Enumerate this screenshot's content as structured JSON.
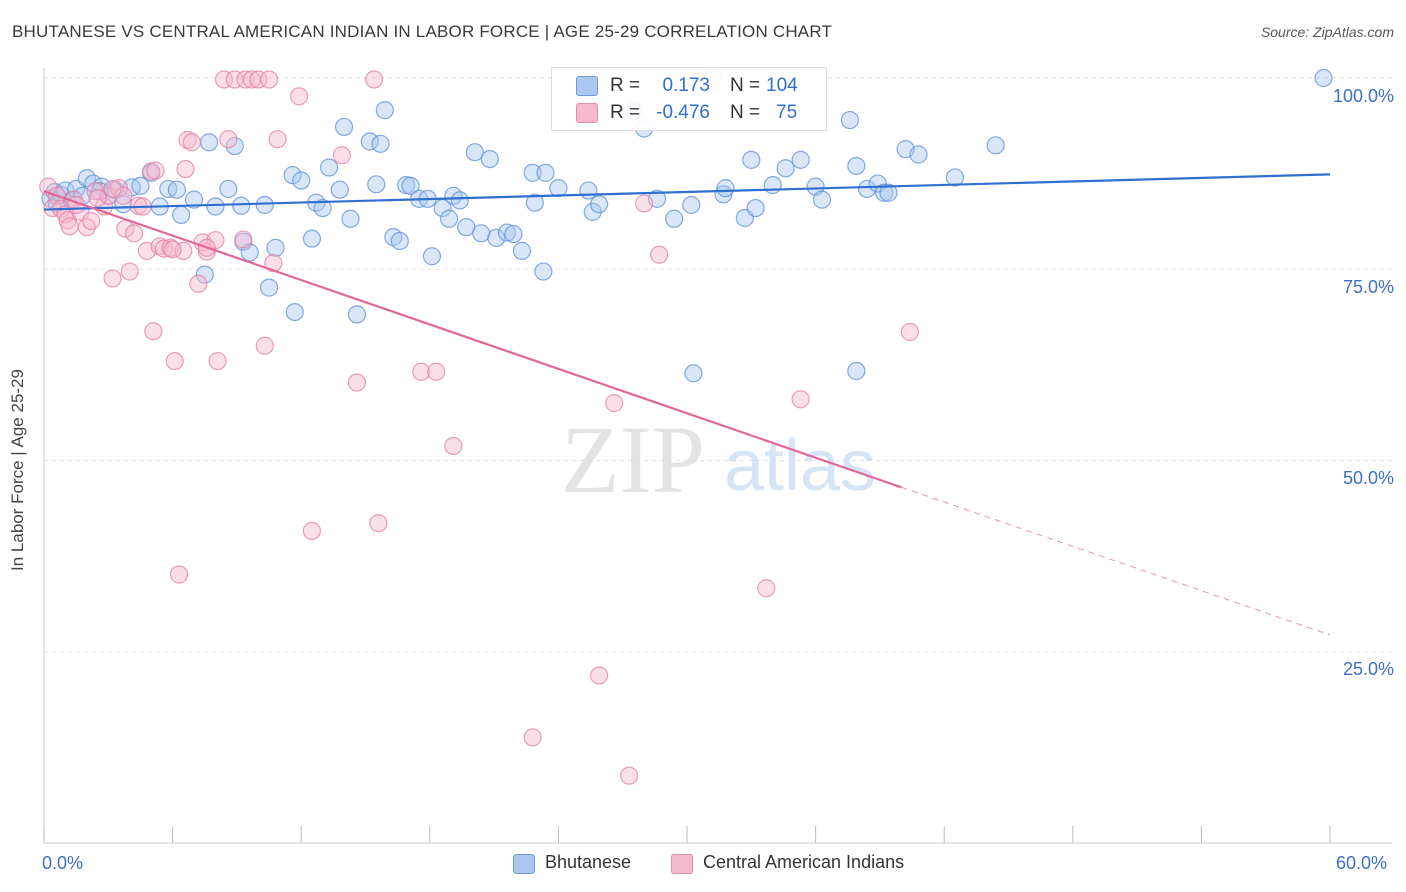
{
  "title": "BHUTANESE VS CENTRAL AMERICAN INDIAN IN LABOR FORCE | AGE 25-29 CORRELATION CHART",
  "source": "Source: ZipAtlas.com",
  "watermark": {
    "zip": "ZIP",
    "atlas": "atlas"
  },
  "colors": {
    "blue": "#2f6fcf",
    "blue_fill": "#a9c7ef",
    "pink": "#e0679a",
    "pink_fill": "#f6b8cd",
    "tick_text": "#3d6fc4",
    "grid": "#e3e3e3"
  },
  "legend": {
    "rows": [
      {
        "r_label": "R =",
        "r_value": "0.173",
        "n_label": "N =",
        "n_value": "104"
      },
      {
        "r_label": "R =",
        "r_value": "-0.476",
        "n_label": "N =",
        "n_value": "75"
      }
    ]
  },
  "chart_data": {
    "type": "scatter",
    "title": "BHUTANESE VS CENTRAL AMERICAN INDIAN IN LABOR FORCE | AGE 25-29 CORRELATION CHART",
    "xlabel": "",
    "ylabel": "In Labor Force | Age 25-29",
    "xlim": [
      0,
      60
    ],
    "ylim": [
      0,
      100
    ],
    "x_tick_labels": [
      "0.0%",
      "60.0%"
    ],
    "y_ticks": [
      25,
      50,
      75,
      100
    ],
    "y_tick_labels": [
      "25.0%",
      "50.0%",
      "75.0%",
      "100.0%"
    ],
    "grid": true,
    "legend_position": "top-center",
    "series": [
      {
        "name": "Bhutanese",
        "color": "#2f6fcf",
        "r": 0.173,
        "n": 104,
        "trend": {
          "x": [
            0,
            60
          ],
          "y": [
            82.8,
            87.4
          ],
          "style": "solid"
        },
        "points": [
          [
            0.3,
            84.2
          ],
          [
            0.5,
            85.1
          ],
          [
            0.6,
            83.6
          ],
          [
            0.8,
            84.7
          ],
          [
            1.0,
            85.3
          ],
          [
            1.3,
            84.0
          ],
          [
            1.5,
            85.5
          ],
          [
            2.0,
            86.9
          ],
          [
            2.3,
            86.2
          ],
          [
            2.7,
            85.8
          ],
          [
            3.0,
            84.6
          ],
          [
            3.3,
            85.4
          ],
          [
            3.7,
            83.5
          ],
          [
            4.1,
            85.7
          ],
          [
            4.5,
            85.9
          ],
          [
            5.0,
            87.6
          ],
          [
            5.4,
            83.2
          ],
          [
            5.8,
            85.5
          ],
          [
            6.4,
            82.1
          ],
          [
            7.0,
            84.1
          ],
          [
            7.5,
            74.3
          ],
          [
            7.7,
            91.6
          ],
          [
            8.0,
            83.2
          ],
          [
            8.6,
            85.5
          ],
          [
            8.9,
            91.1
          ],
          [
            9.2,
            83.3
          ],
          [
            9.3,
            78.6
          ],
          [
            9.6,
            77.2
          ],
          [
            10.3,
            83.4
          ],
          [
            10.5,
            72.6
          ],
          [
            10.8,
            77.8
          ],
          [
            11.6,
            87.3
          ],
          [
            11.7,
            69.4
          ],
          [
            12.0,
            86.6
          ],
          [
            12.5,
            79.0
          ],
          [
            12.7,
            83.7
          ],
          [
            13.0,
            83.0
          ],
          [
            13.3,
            88.3
          ],
          [
            13.8,
            85.4
          ],
          [
            14.3,
            81.6
          ],
          [
            14.6,
            69.1
          ],
          [
            15.2,
            91.7
          ],
          [
            15.5,
            86.1
          ],
          [
            15.7,
            91.4
          ],
          [
            15.9,
            95.8
          ],
          [
            16.3,
            79.2
          ],
          [
            16.6,
            78.7
          ],
          [
            16.9,
            86.0
          ],
          [
            17.1,
            85.9
          ],
          [
            17.5,
            84.2
          ],
          [
            17.9,
            84.2
          ],
          [
            18.1,
            76.7
          ],
          [
            18.6,
            83.0
          ],
          [
            18.9,
            81.6
          ],
          [
            19.1,
            84.6
          ],
          [
            19.4,
            84.0
          ],
          [
            19.7,
            80.5
          ],
          [
            20.1,
            90.3
          ],
          [
            20.4,
            79.7
          ],
          [
            20.8,
            89.4
          ],
          [
            21.1,
            79.1
          ],
          [
            21.6,
            79.8
          ],
          [
            21.9,
            79.6
          ],
          [
            22.3,
            77.4
          ],
          [
            22.8,
            87.6
          ],
          [
            22.9,
            83.7
          ],
          [
            23.3,
            74.7
          ],
          [
            23.4,
            87.6
          ],
          [
            24.0,
            85.6
          ],
          [
            25.4,
            85.3
          ],
          [
            25.6,
            82.5
          ],
          [
            25.9,
            83.5
          ],
          [
            27.5,
            95.7
          ],
          [
            28.0,
            93.4
          ],
          [
            28.6,
            84.2
          ],
          [
            29.4,
            81.6
          ],
          [
            30.2,
            83.4
          ],
          [
            31.7,
            84.8
          ],
          [
            31.8,
            85.6
          ],
          [
            32.7,
            81.7
          ],
          [
            33.0,
            89.3
          ],
          [
            33.2,
            83.0
          ],
          [
            34.0,
            86.0
          ],
          [
            34.6,
            88.2
          ],
          [
            35.3,
            89.3
          ],
          [
            36.0,
            85.8
          ],
          [
            36.3,
            84.1
          ],
          [
            37.6,
            94.5
          ],
          [
            37.9,
            88.5
          ],
          [
            38.4,
            85.5
          ],
          [
            38.9,
            86.2
          ],
          [
            39.2,
            85.0
          ],
          [
            39.4,
            85.0
          ],
          [
            40.2,
            90.7
          ],
          [
            40.8,
            90.0
          ],
          [
            42.5,
            87.0
          ],
          [
            44.4,
            91.2
          ],
          [
            59.7,
            100.0
          ],
          [
            30.3,
            61.4
          ],
          [
            37.9,
            61.7
          ],
          [
            1.8,
            84.6
          ],
          [
            6.2,
            85.4
          ],
          [
            2.6,
            85.2
          ],
          [
            14.0,
            93.6
          ]
        ]
      },
      {
        "name": "Central American Indians",
        "color": "#e0679a",
        "r": -0.476,
        "n": 75,
        "trend": {
          "x": [
            0,
            40
          ],
          "y": [
            85.2,
            46.5
          ],
          "style": "solid",
          "extended": {
            "x": [
              40,
              60
            ],
            "y": [
              46.5,
              27.2
            ],
            "style": "dashed"
          }
        },
        "points": [
          [
            0.2,
            85.8
          ],
          [
            0.4,
            83.0
          ],
          [
            0.6,
            84.6
          ],
          [
            0.8,
            82.9
          ],
          [
            1.0,
            82.2
          ],
          [
            1.1,
            81.4
          ],
          [
            1.2,
            80.6
          ],
          [
            1.4,
            84.1
          ],
          [
            1.7,
            82.5
          ],
          [
            2.0,
            80.5
          ],
          [
            2.2,
            81.3
          ],
          [
            2.4,
            85.2
          ],
          [
            2.8,
            83.2
          ],
          [
            3.0,
            84.6
          ],
          [
            3.2,
            73.8
          ],
          [
            3.5,
            85.6
          ],
          [
            3.7,
            84.6
          ],
          [
            3.8,
            80.3
          ],
          [
            4.0,
            74.7
          ],
          [
            4.2,
            79.7
          ],
          [
            4.4,
            83.3
          ],
          [
            4.6,
            83.2
          ],
          [
            4.8,
            77.4
          ],
          [
            5.0,
            87.8
          ],
          [
            5.1,
            66.9
          ],
          [
            5.4,
            78.0
          ],
          [
            5.6,
            77.7
          ],
          [
            5.9,
            77.8
          ],
          [
            6.1,
            63.0
          ],
          [
            6.3,
            35.1
          ],
          [
            6.5,
            77.4
          ],
          [
            6.7,
            91.9
          ],
          [
            6.9,
            91.6
          ],
          [
            7.2,
            73.1
          ],
          [
            7.4,
            78.5
          ],
          [
            7.6,
            77.3
          ],
          [
            8.0,
            78.8
          ],
          [
            8.1,
            63.0
          ],
          [
            8.4,
            99.8
          ],
          [
            8.6,
            92.0
          ],
          [
            8.9,
            99.8
          ],
          [
            9.4,
            99.8
          ],
          [
            9.7,
            99.8
          ],
          [
            10.0,
            99.8
          ],
          [
            10.3,
            65.0
          ],
          [
            10.5,
            99.8
          ],
          [
            10.7,
            75.8
          ],
          [
            10.9,
            92.0
          ],
          [
            11.9,
            97.6
          ],
          [
            12.5,
            40.8
          ],
          [
            13.9,
            89.9
          ],
          [
            14.6,
            60.2
          ],
          [
            15.4,
            99.8
          ],
          [
            15.6,
            41.8
          ],
          [
            17.6,
            61.6
          ],
          [
            18.3,
            61.6
          ],
          [
            19.1,
            51.9
          ],
          [
            22.8,
            13.8
          ],
          [
            25.9,
            21.9
          ],
          [
            26.6,
            57.5
          ],
          [
            27.3,
            8.8
          ],
          [
            28.0,
            83.6
          ],
          [
            28.7,
            76.9
          ],
          [
            31.2,
            100.0
          ],
          [
            33.7,
            33.3
          ],
          [
            35.3,
            58.0
          ],
          [
            40.4,
            66.8
          ],
          [
            6.6,
            88.1
          ],
          [
            3.2,
            85.5
          ],
          [
            1.5,
            83.4
          ],
          [
            6.0,
            77.6
          ],
          [
            9.3,
            78.9
          ],
          [
            5.2,
            87.9
          ],
          [
            2.5,
            84.3
          ],
          [
            7.6,
            77.8
          ]
        ]
      }
    ]
  }
}
